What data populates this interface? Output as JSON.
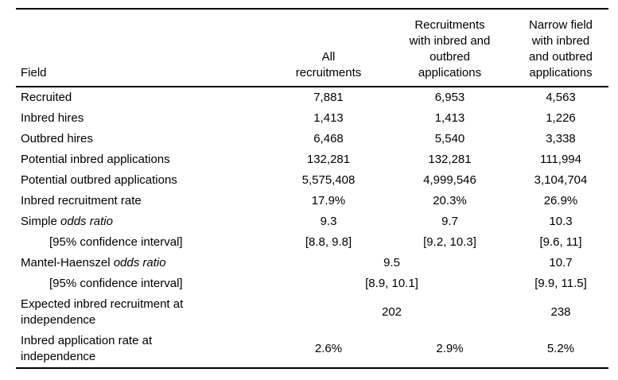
{
  "meta": {
    "background_color": "#ffffff",
    "text_color": "#000000",
    "rule_color": "#000000"
  },
  "table": {
    "header": {
      "field": "Field",
      "col1": "All\nrecruitments",
      "col2": "Recruitments\nwith inbred and\noutbred\napplications",
      "col3": "Narrow field\nwith inbred\nand outbred\napplications"
    },
    "rows": [
      {
        "label": "Recruited",
        "values": [
          "7,881",
          "6,953",
          "4,563"
        ]
      },
      {
        "label": "Inbred hires",
        "values": [
          "1,413",
          "1,413",
          "1,226"
        ]
      },
      {
        "label": "Outbred hires",
        "values": [
          "6,468",
          "5,540",
          "3,338"
        ]
      },
      {
        "label": "Potential inbred applications",
        "values": [
          "132,281",
          "132,281",
          "111,994"
        ]
      },
      {
        "label": "Potential outbred applications",
        "values": [
          "5,575,408",
          "4,999,546",
          "3,104,704"
        ]
      },
      {
        "label": "Inbred recruitment rate",
        "values": [
          "17.9%",
          "20.3%",
          "26.9%"
        ]
      },
      {
        "label": "Simple ",
        "label_italic": "odds ratio",
        "values": [
          "9.3",
          "9.7",
          "10.3"
        ]
      },
      {
        "label": "[95% confidence interval]",
        "indent": true,
        "values": [
          "[8.8, 9.8]",
          "[9.2, 10.3]",
          "[9.6, 11]"
        ]
      },
      {
        "label": "Mantel-Haenszel ",
        "label_italic": "odds ratio",
        "span_value": "9.5",
        "last_value": "10.7"
      },
      {
        "label": "[95% confidence interval]",
        "indent": true,
        "span_value": "[8.9, 10.1]",
        "last_value": "[9.9, 11.5]"
      },
      {
        "label": "Expected inbred recruitment at\nindependence",
        "span_value": "202",
        "last_value": "238"
      },
      {
        "label": "Inbred application rate at\nindependence",
        "values": [
          "2.6%",
          "2.9%",
          "5.2%"
        ]
      }
    ]
  }
}
